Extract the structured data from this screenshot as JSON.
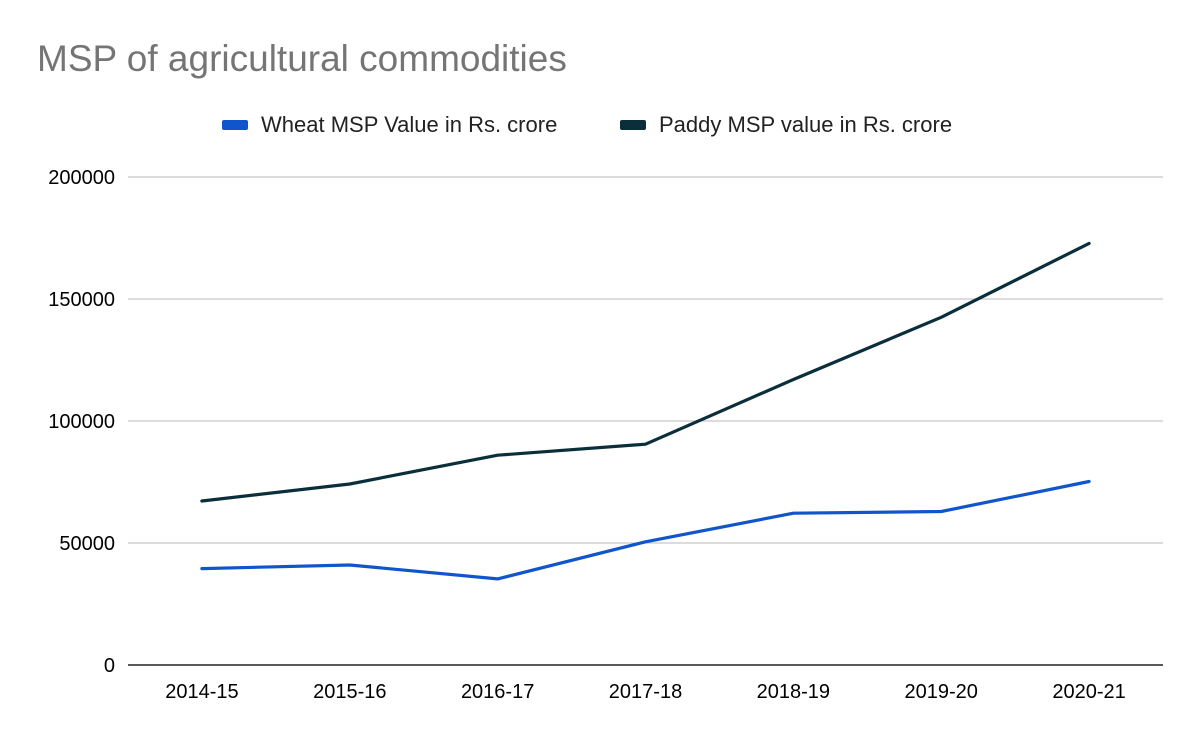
{
  "chart_data": {
    "type": "line",
    "title": "MSP of agricultural commodities",
    "categories": [
      "2014-15",
      "2015-16",
      "2016-17",
      "2017-18",
      "2018-19",
      "2019-20",
      "2020-21"
    ],
    "series": [
      {
        "name": "Wheat MSP Value in Rs. crore",
        "color": "#1155cc",
        "values": [
          39500,
          41000,
          35300,
          50500,
          62200,
          62900,
          75200
        ]
      },
      {
        "name": "Paddy MSP value in Rs. crore",
        "color": "#0b2f3a",
        "values": [
          67200,
          74200,
          86000,
          90500,
          117000,
          142500,
          172800
        ]
      }
    ],
    "y_ticks": [
      "0",
      "50000",
      "100000",
      "150000",
      "200000"
    ],
    "ylim": [
      0,
      200000
    ],
    "xlabel": "",
    "ylabel": "",
    "grid": true,
    "legend_position": "top-center"
  }
}
